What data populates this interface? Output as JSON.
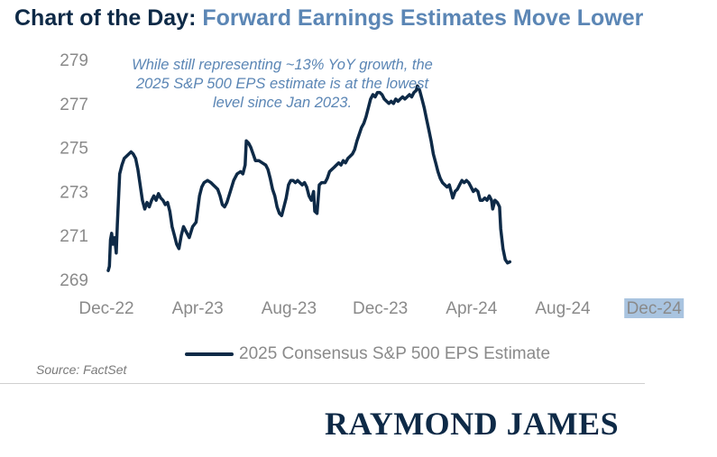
{
  "title": {
    "prefix": "Chart of the Day:",
    "main": "Forward Earnings Estimates Move Lower"
  },
  "annotation": "While still representing ~13% YoY growth, the 2025 S&P 500 EPS estimate is at the lowest level since Jan 2023.",
  "source": "Source: FactSet",
  "logo": "RAYMOND JAMES",
  "colors": {
    "title_prefix": "#0e2a47",
    "title_main": "#5b86b5",
    "line": "#0e2a47",
    "annotation": "#5b86b5",
    "axis_text": "#8a8a8a",
    "highlight_tick": "#a9c4e0"
  },
  "chart_data": {
    "type": "line",
    "title": "Forward Earnings Estimates Move Lower",
    "xlabel": "",
    "ylabel": "",
    "x_ticks": [
      "Dec-22",
      "Apr-23",
      "Aug-23",
      "Dec-23",
      "Apr-24",
      "Aug-24",
      "Dec-24"
    ],
    "highlighted_tick": "Dec-24",
    "y_ticks": [
      269,
      271,
      273,
      275,
      277,
      279
    ],
    "ylim": [
      269,
      279
    ],
    "grid": false,
    "legend_position": "bottom",
    "series": [
      {
        "name": "2025 Consensus S&P 500 EPS Estimate",
        "x_unit": "months since Dec-22",
        "points": [
          [
            0.0,
            269.4
          ],
          [
            0.05,
            269.6
          ],
          [
            0.1,
            270.8
          ],
          [
            0.15,
            271.1
          ],
          [
            0.2,
            270.6
          ],
          [
            0.28,
            270.9
          ],
          [
            0.35,
            270.2
          ],
          [
            0.4,
            271.5
          ],
          [
            0.5,
            273.8
          ],
          [
            0.6,
            274.2
          ],
          [
            0.7,
            274.5
          ],
          [
            0.8,
            274.6
          ],
          [
            0.9,
            274.7
          ],
          [
            1.0,
            274.8
          ],
          [
            1.1,
            274.7
          ],
          [
            1.2,
            274.5
          ],
          [
            1.3,
            274.0
          ],
          [
            1.4,
            273.3
          ],
          [
            1.5,
            272.6
          ],
          [
            1.6,
            272.2
          ],
          [
            1.7,
            272.5
          ],
          [
            1.8,
            272.3
          ],
          [
            1.9,
            272.6
          ],
          [
            2.0,
            272.8
          ],
          [
            2.1,
            272.6
          ],
          [
            2.2,
            272.9
          ],
          [
            2.3,
            272.7
          ],
          [
            2.4,
            272.6
          ],
          [
            2.5,
            272.4
          ],
          [
            2.6,
            272.5
          ],
          [
            2.7,
            272.1
          ],
          [
            2.8,
            271.4
          ],
          [
            2.9,
            271.0
          ],
          [
            3.0,
            270.6
          ],
          [
            3.1,
            270.4
          ],
          [
            3.2,
            271.0
          ],
          [
            3.3,
            271.4
          ],
          [
            3.4,
            271.2
          ],
          [
            3.55,
            270.9
          ],
          [
            3.7,
            271.4
          ],
          [
            3.85,
            271.6
          ],
          [
            4.0,
            272.8
          ],
          [
            4.1,
            273.2
          ],
          [
            4.2,
            273.4
          ],
          [
            4.35,
            273.5
          ],
          [
            4.5,
            273.4
          ],
          [
            4.6,
            273.3
          ],
          [
            4.7,
            273.2
          ],
          [
            4.8,
            273.1
          ],
          [
            4.9,
            272.8
          ],
          [
            5.0,
            272.4
          ],
          [
            5.1,
            272.3
          ],
          [
            5.2,
            272.5
          ],
          [
            5.35,
            273.0
          ],
          [
            5.5,
            273.5
          ],
          [
            5.65,
            273.8
          ],
          [
            5.8,
            273.9
          ],
          [
            5.9,
            273.8
          ],
          [
            6.0,
            274.2
          ],
          [
            6.05,
            275.3
          ],
          [
            6.15,
            275.2
          ],
          [
            6.25,
            275.0
          ],
          [
            6.35,
            274.7
          ],
          [
            6.45,
            274.4
          ],
          [
            6.6,
            274.4
          ],
          [
            6.75,
            274.3
          ],
          [
            6.9,
            274.2
          ],
          [
            7.0,
            274.0
          ],
          [
            7.1,
            273.6
          ],
          [
            7.2,
            273.1
          ],
          [
            7.3,
            272.8
          ],
          [
            7.4,
            272.3
          ],
          [
            7.5,
            272.0
          ],
          [
            7.6,
            271.9
          ],
          [
            7.7,
            272.3
          ],
          [
            7.8,
            272.7
          ],
          [
            7.9,
            273.3
          ],
          [
            8.0,
            273.5
          ],
          [
            8.1,
            273.5
          ],
          [
            8.2,
            273.4
          ],
          [
            8.3,
            273.5
          ],
          [
            8.4,
            273.4
          ],
          [
            8.5,
            273.3
          ],
          [
            8.6,
            273.4
          ],
          [
            8.7,
            273.2
          ],
          [
            8.8,
            272.8
          ],
          [
            8.9,
            272.6
          ],
          [
            9.0,
            273.0
          ],
          [
            9.05,
            272.1
          ],
          [
            9.15,
            272.0
          ],
          [
            9.25,
            273.3
          ],
          [
            9.35,
            273.4
          ],
          [
            9.5,
            273.4
          ],
          [
            9.6,
            273.6
          ],
          [
            9.7,
            273.9
          ],
          [
            9.8,
            274.0
          ],
          [
            9.9,
            274.1
          ],
          [
            10.0,
            274.2
          ],
          [
            10.1,
            274.3
          ],
          [
            10.2,
            274.2
          ],
          [
            10.3,
            274.4
          ],
          [
            10.4,
            274.3
          ],
          [
            10.5,
            274.5
          ],
          [
            10.6,
            274.6
          ],
          [
            10.7,
            274.7
          ],
          [
            10.8,
            274.9
          ],
          [
            10.9,
            275.3
          ],
          [
            11.0,
            275.6
          ],
          [
            11.1,
            275.9
          ],
          [
            11.2,
            276.1
          ],
          [
            11.3,
            276.4
          ],
          [
            11.4,
            276.8
          ],
          [
            11.5,
            277.2
          ],
          [
            11.6,
            277.4
          ],
          [
            11.7,
            277.3
          ],
          [
            11.8,
            277.5
          ],
          [
            11.9,
            277.5
          ],
          [
            12.0,
            277.4
          ],
          [
            12.1,
            277.2
          ],
          [
            12.2,
            277.1
          ],
          [
            12.3,
            277.0
          ],
          [
            12.4,
            277.1
          ],
          [
            12.5,
            277.0
          ],
          [
            12.6,
            277.2
          ],
          [
            12.7,
            277.1
          ],
          [
            12.8,
            277.2
          ],
          [
            12.9,
            277.3
          ],
          [
            13.0,
            277.2
          ],
          [
            13.1,
            277.3
          ],
          [
            13.2,
            277.4
          ],
          [
            13.3,
            277.3
          ],
          [
            13.4,
            277.5
          ],
          [
            13.5,
            277.6
          ],
          [
            13.55,
            277.8
          ],
          [
            13.65,
            277.6
          ],
          [
            13.75,
            277.2
          ],
          [
            13.85,
            276.8
          ],
          [
            13.95,
            276.3
          ],
          [
            14.05,
            275.8
          ],
          [
            14.15,
            275.3
          ],
          [
            14.25,
            274.7
          ],
          [
            14.35,
            274.3
          ],
          [
            14.45,
            273.9
          ],
          [
            14.55,
            273.6
          ],
          [
            14.65,
            273.4
          ],
          [
            14.75,
            273.3
          ],
          [
            14.85,
            273.2
          ],
          [
            14.95,
            273.3
          ],
          [
            15.05,
            272.9
          ],
          [
            15.1,
            272.7
          ],
          [
            15.2,
            273.0
          ],
          [
            15.3,
            273.1
          ],
          [
            15.4,
            273.3
          ],
          [
            15.5,
            273.5
          ],
          [
            15.6,
            273.4
          ],
          [
            15.7,
            273.5
          ],
          [
            15.8,
            273.4
          ],
          [
            15.9,
            273.2
          ],
          [
            16.0,
            273.0
          ],
          [
            16.1,
            273.1
          ],
          [
            16.2,
            273.0
          ],
          [
            16.3,
            272.6
          ],
          [
            16.4,
            272.6
          ],
          [
            16.5,
            272.7
          ],
          [
            16.6,
            272.6
          ],
          [
            16.7,
            272.8
          ],
          [
            16.8,
            272.6
          ],
          [
            16.85,
            272.2
          ],
          [
            16.95,
            272.6
          ],
          [
            17.05,
            272.5
          ],
          [
            17.15,
            272.3
          ],
          [
            17.2,
            271.3
          ],
          [
            17.3,
            270.4
          ],
          [
            17.4,
            269.9
          ],
          [
            17.5,
            269.75
          ],
          [
            17.6,
            269.8
          ]
        ]
      }
    ]
  }
}
